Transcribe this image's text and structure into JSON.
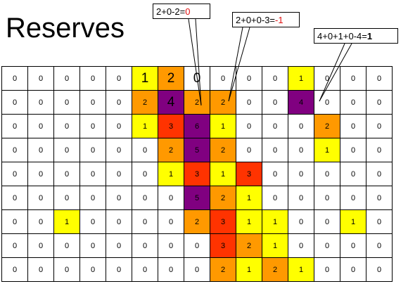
{
  "title": "Reserves",
  "callouts": [
    {
      "expr": "2+0-2=",
      "result": "0",
      "result_color": "red"
    },
    {
      "expr": "2+0+0-3=",
      "result": "-1",
      "result_color": "red"
    },
    {
      "expr": "4+0+1+0-4=",
      "result": "1",
      "result_color": "black-bold"
    }
  ],
  "colors": {
    "white": "#ffffff",
    "yellow": "#ffff00",
    "orange": "#ff9900",
    "red": "#ff3300",
    "purple": "#800080"
  },
  "grid": [
    [
      "0",
      "0",
      "0",
      "0",
      "0",
      "1",
      "2",
      "0",
      "0",
      "0",
      "0",
      "1",
      "0",
      "0",
      "0"
    ],
    [
      "0",
      "0",
      "0",
      "0",
      "0",
      "2",
      "4",
      "2",
      "2",
      "0",
      "0",
      "4",
      "0",
      "0",
      "0"
    ],
    [
      "0",
      "0",
      "0",
      "0",
      "0",
      "1",
      "3",
      "6",
      "1",
      "0",
      "0",
      "0",
      "2",
      "0",
      "0"
    ],
    [
      "0",
      "0",
      "0",
      "0",
      "0",
      "0",
      "2",
      "5",
      "2",
      "0",
      "0",
      "0",
      "1",
      "0",
      "0"
    ],
    [
      "0",
      "0",
      "0",
      "0",
      "0",
      "0",
      "1",
      "3",
      "1",
      "3",
      "0",
      "0",
      "0",
      "0",
      "0"
    ],
    [
      "0",
      "0",
      "0",
      "0",
      "0",
      "0",
      "0",
      "5",
      "2",
      "1",
      "0",
      "0",
      "0",
      "0",
      "0"
    ],
    [
      "0",
      "0",
      "1",
      "0",
      "0",
      "0",
      "0",
      "2",
      "3",
      "1",
      "1",
      "0",
      "0",
      "1",
      "0"
    ],
    [
      "0",
      "0",
      "0",
      "0",
      "0",
      "0",
      "0",
      "0",
      "3",
      "2",
      "1",
      "0",
      "0",
      "0",
      "0"
    ],
    [
      "0",
      "0",
      "0",
      "0",
      "0",
      "0",
      "0",
      "0",
      "2",
      "1",
      "2",
      "1",
      "0",
      "0",
      "0"
    ]
  ],
  "cell_fill": [
    [
      "w",
      "w",
      "w",
      "w",
      "w",
      "y",
      "o",
      "w",
      "w",
      "w",
      "w",
      "y",
      "w",
      "w",
      "w"
    ],
    [
      "w",
      "w",
      "w",
      "w",
      "w",
      "o",
      "p",
      "o",
      "o",
      "w",
      "w",
      "p",
      "w",
      "w",
      "w"
    ],
    [
      "w",
      "w",
      "w",
      "w",
      "w",
      "y",
      "r",
      "p",
      "y",
      "w",
      "w",
      "w",
      "o",
      "w",
      "w"
    ],
    [
      "w",
      "w",
      "w",
      "w",
      "w",
      "w",
      "o",
      "p",
      "o",
      "w",
      "w",
      "w",
      "y",
      "w",
      "w"
    ],
    [
      "w",
      "w",
      "w",
      "w",
      "w",
      "w",
      "y",
      "r",
      "y",
      "r",
      "w",
      "w",
      "w",
      "w",
      "w"
    ],
    [
      "w",
      "w",
      "w",
      "w",
      "w",
      "w",
      "w",
      "p",
      "o",
      "y",
      "w",
      "w",
      "w",
      "w",
      "w"
    ],
    [
      "w",
      "w",
      "y",
      "w",
      "w",
      "w",
      "w",
      "o",
      "r",
      "y",
      "y",
      "w",
      "w",
      "y",
      "w"
    ],
    [
      "w",
      "w",
      "w",
      "w",
      "w",
      "w",
      "w",
      "w",
      "r",
      "o",
      "y",
      "w",
      "w",
      "w",
      "w"
    ],
    [
      "w",
      "w",
      "w",
      "w",
      "w",
      "w",
      "w",
      "w",
      "o",
      "y",
      "o",
      "y",
      "w",
      "w",
      "w"
    ]
  ],
  "large_digits": [
    [
      0,
      5
    ],
    [
      0,
      6
    ],
    [
      0,
      7
    ],
    [
      1,
      6
    ]
  ]
}
